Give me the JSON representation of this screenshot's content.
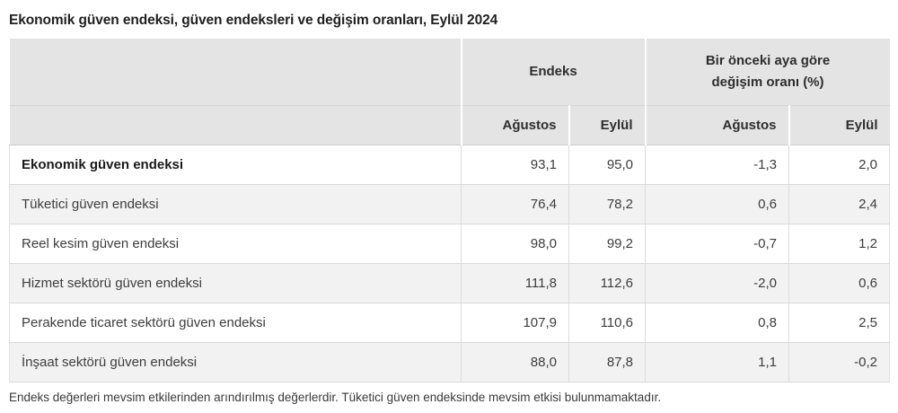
{
  "title": "Ekonomik güven endeksi, güven endeksleri ve değişim oranları, Eylül 2024",
  "table": {
    "group_headers": {
      "endeks": "Endeks",
      "change": "Bir önceki aya göre değişim oranı (%)"
    },
    "sub_headers": {
      "endeks_agustos": "Ağustos",
      "endeks_eylul": "Eylül",
      "change_agustos": "Ağustos",
      "change_eylul": "Eylül"
    },
    "rows": [
      {
        "label": "Ekonomik güven endeksi",
        "values": [
          "93,1",
          "95,0",
          "-1,3",
          "2,0"
        ]
      },
      {
        "label": "Tüketici güven endeksi",
        "values": [
          "76,4",
          "78,2",
          "0,6",
          "2,4"
        ]
      },
      {
        "label": "Reel kesim güven endeksi",
        "values": [
          "98,0",
          "99,2",
          "-0,7",
          "1,2"
        ]
      },
      {
        "label": "Hizmet sektörü güven endeksi",
        "values": [
          "111,8",
          "112,6",
          "-2,0",
          "0,6"
        ]
      },
      {
        "label": "Perakende ticaret sektörü güven endeksi",
        "values": [
          "107,9",
          "110,6",
          "0,8",
          "2,5"
        ]
      },
      {
        "label": "İnşaat sektörü güven endeksi",
        "values": [
          "88,0",
          "87,8",
          "1,1",
          "-0,2"
        ]
      }
    ]
  },
  "footnote": "Endeks değerleri mevsim etkilerinden arındırılmış değerlerdir. Tüketici güven endeksinde mevsim etkisi bulunmamaktadır.",
  "colors": {
    "header_bg": "#e4e4e4",
    "alt_row_bg": "#f2f2f2",
    "border": "#d9d9d9",
    "title_text": "#1f1f1f",
    "text": "#3d3d3d"
  },
  "chart_data": {
    "type": "table",
    "title": "Ekonomik güven endeksi, güven endeksleri ve değişim oranları, Eylül 2024",
    "column_groups": [
      "Endeks",
      "Bir önceki aya göre değişim oranı (%)"
    ],
    "columns": [
      "Endeks Ağustos",
      "Endeks Eylül",
      "Değişim oranı (%) Ağustos",
      "Değişim oranı (%) Eylül"
    ],
    "rows": [
      {
        "label": "Ekonomik güven endeksi",
        "values": [
          93.1,
          95.0,
          -1.3,
          2.0
        ]
      },
      {
        "label": "Tüketici güven endeksi",
        "values": [
          76.4,
          78.2,
          0.6,
          2.4
        ]
      },
      {
        "label": "Reel kesim güven endeksi",
        "values": [
          98.0,
          99.2,
          -0.7,
          1.2
        ]
      },
      {
        "label": "Hizmet sektörü güven endeksi",
        "values": [
          111.8,
          112.6,
          -2.0,
          0.6
        ]
      },
      {
        "label": "Perakende ticaret sektörü güven endeksi",
        "values": [
          107.9,
          110.6,
          0.8,
          2.5
        ]
      },
      {
        "label": "İnşaat sektörü güven endeksi",
        "values": [
          88.0,
          87.8,
          1.1,
          -0.2
        ]
      }
    ],
    "note": "Endeks değerleri mevsim etkilerinden arındırılmış değerlerdir. Tüketici güven endeksinde mevsim etkisi bulunmamaktadır."
  }
}
